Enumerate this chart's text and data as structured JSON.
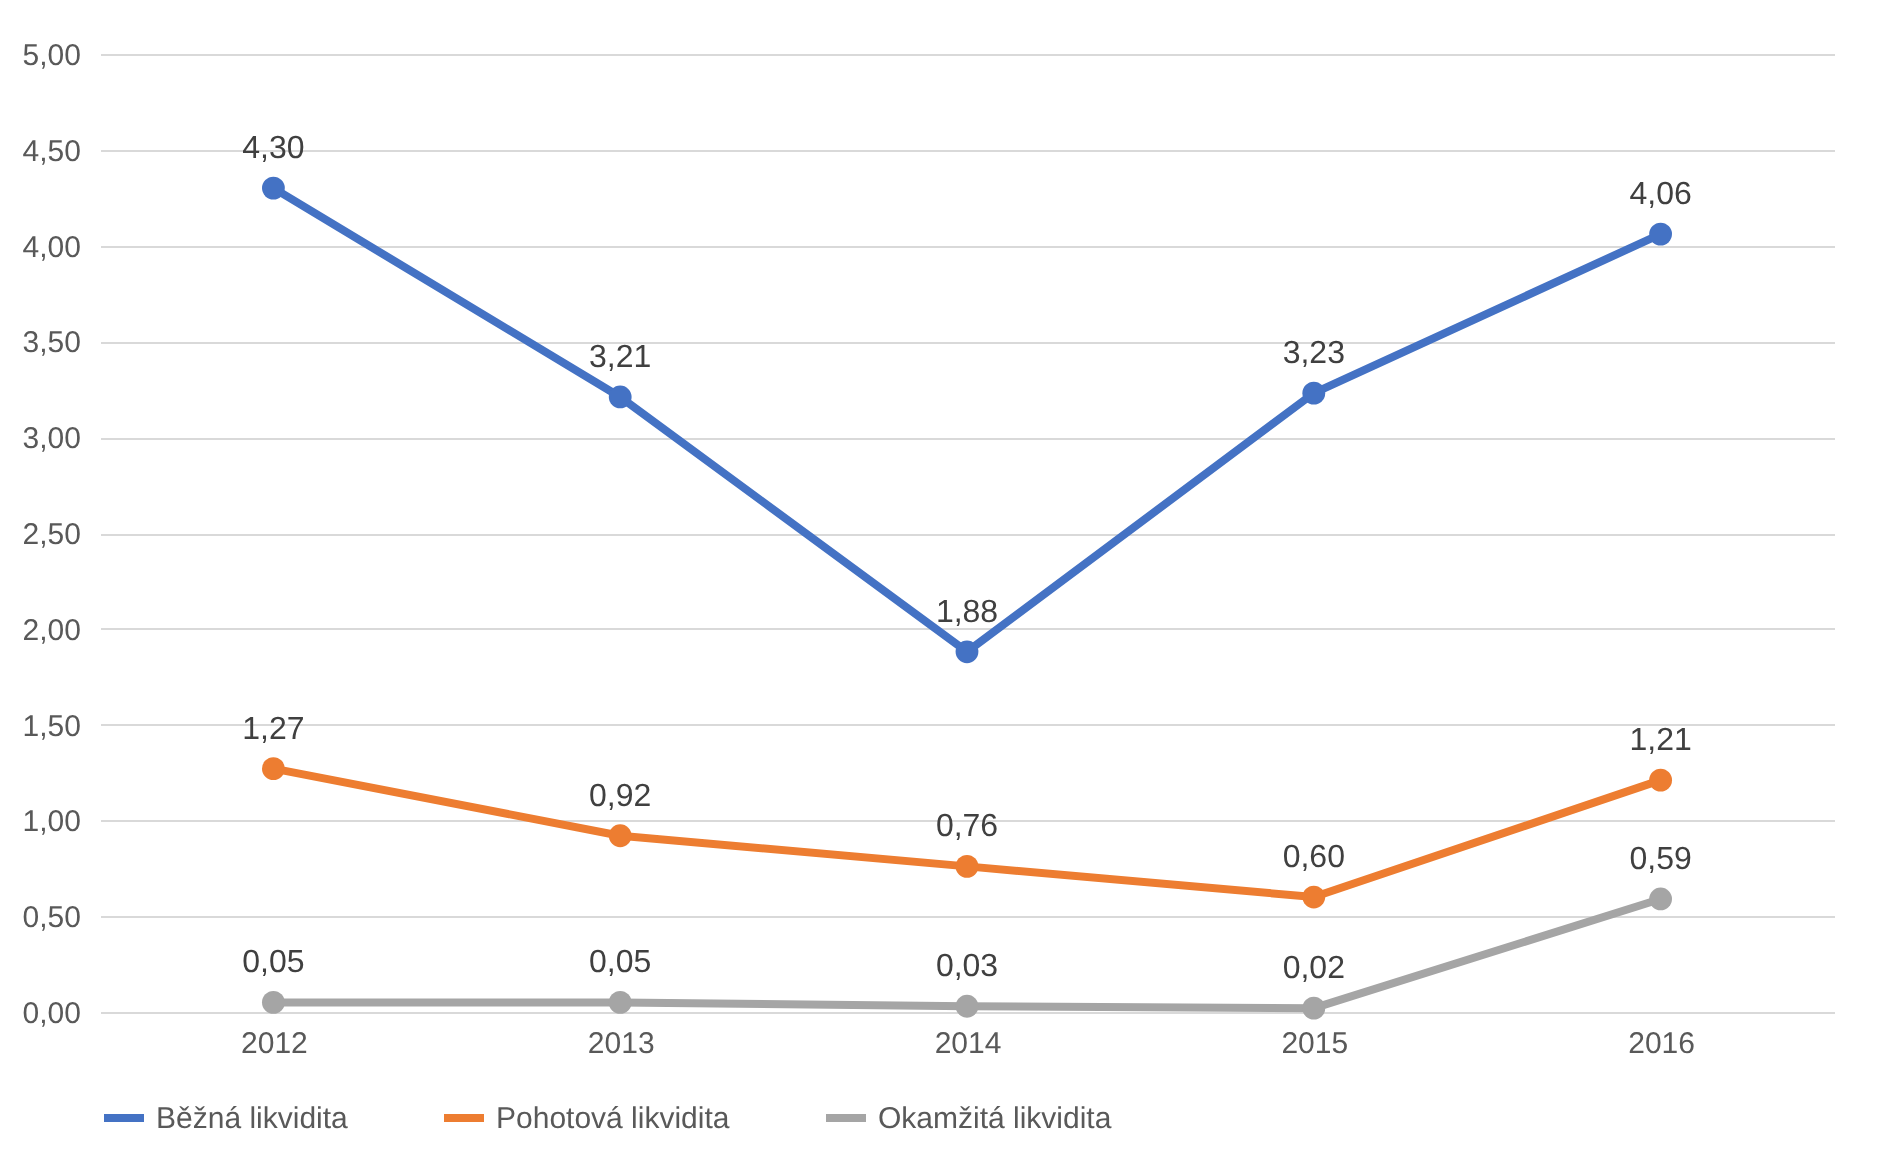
{
  "chart_data": {
    "type": "line",
    "categories": [
      "2012",
      "2013",
      "2014",
      "2015",
      "2016"
    ],
    "series": [
      {
        "name": "Běžná likvidita",
        "color": "#4472c4",
        "values": [
          4.3,
          3.21,
          1.88,
          3.23,
          4.06
        ],
        "value_labels": [
          "4,30",
          "3,21",
          "1,88",
          "3,23",
          "4,06"
        ]
      },
      {
        "name": "Pohotová likvidita",
        "color": "#ed7d31",
        "values": [
          1.27,
          0.92,
          0.76,
          0.6,
          1.21
        ],
        "value_labels": [
          "1,27",
          "0,92",
          "0,76",
          "0,60",
          "1,21"
        ]
      },
      {
        "name": "Okamžitá likvidita",
        "color": "#a5a5a5",
        "values": [
          0.05,
          0.05,
          0.03,
          0.02,
          0.59
        ],
        "value_labels": [
          "0,05",
          "0,05",
          "0,03",
          "0,02",
          "0,59"
        ]
      }
    ],
    "ylim": [
      0,
      5
    ],
    "yticks": [
      {
        "value": 0,
        "label": "0,00"
      },
      {
        "value": 0.5,
        "label": "0,50"
      },
      {
        "value": 1,
        "label": "1,00"
      },
      {
        "value": 1.5,
        "label": "1,50"
      },
      {
        "value": 2,
        "label": "2,00"
      },
      {
        "value": 2.5,
        "label": "2,50"
      },
      {
        "value": 3,
        "label": "3,00"
      },
      {
        "value": 3.5,
        "label": "3,50"
      },
      {
        "value": 4,
        "label": "4,00"
      },
      {
        "value": 4.5,
        "label": "4,50"
      },
      {
        "value": 5,
        "label": "5,00"
      }
    ],
    "grid": "y",
    "legend": "bottom",
    "marker": "circle",
    "line_style": "solid"
  }
}
